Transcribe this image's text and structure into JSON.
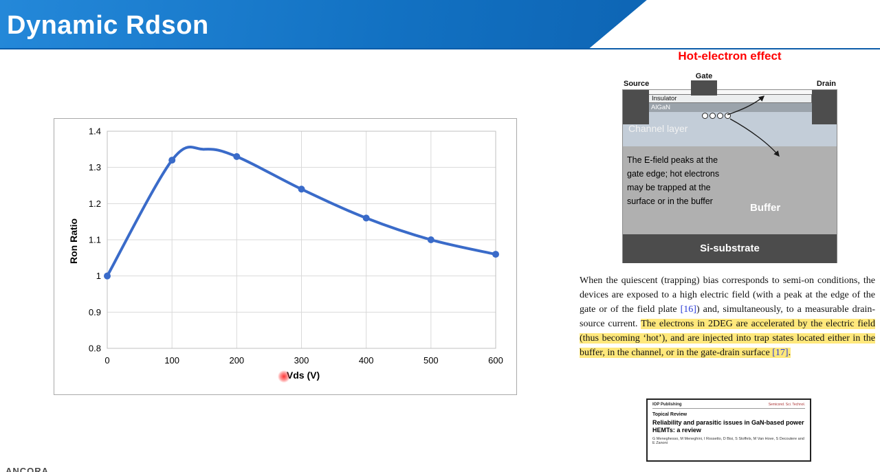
{
  "slide": {
    "title": "Dynamic Rdson",
    "footer_logo": "ANCORA"
  },
  "chart_data": {
    "type": "line",
    "title": "",
    "xlabel": "Vds (V)",
    "ylabel": "Ron Ratio",
    "xlim": [
      0,
      600
    ],
    "ylim": [
      0.8,
      1.4
    ],
    "x_ticks": [
      0,
      100,
      200,
      300,
      400,
      500,
      600
    ],
    "y_ticks": [
      0.8,
      0.9,
      1,
      1.1,
      1.2,
      1.3,
      1.4
    ],
    "grid": true,
    "legend": "none",
    "series": [
      {
        "name": "Ron Ratio",
        "color": "#3a6bc9",
        "x": [
          0,
          100,
          150,
          200,
          300,
          400,
          500,
          600
        ],
        "y": [
          1.0,
          1.32,
          1.35,
          1.33,
          1.24,
          1.16,
          1.1,
          1.06
        ],
        "marker_x": [
          0,
          100,
          200,
          300,
          400,
          500,
          600
        ]
      }
    ]
  },
  "diagram": {
    "title": "Hot-electron effect",
    "source_label": "Source",
    "gate_label": "Gate",
    "drain_label": "Drain",
    "insulator_label": "Insulator",
    "algan_label": "AlGaN",
    "channel_label": "Channel layer",
    "buffer_label": "Buffer",
    "substrate_label": "Si-substrate",
    "caption": "The E-field peaks at the gate edge; hot electrons may be trapped at the surface or in the buffer"
  },
  "paragraph": {
    "plain_1": "When the quiescent (trapping) bias corresponds to semi-on conditions, the devices are exposed to a high electric field (with a peak at the edge of the gate or of the field plate ",
    "ref_16": "[16]",
    "plain_2": ") and, simultaneously, to a measurable drain-source current. ",
    "highlight_1": "The electrons in 2DEG are accelerated by the electric field (thus becoming ‘hot’), and are injected into trap states located either in the buffer, in the channel, or in the gate-drain surface ",
    "ref_17": "[17]",
    "highlight_2": "."
  },
  "paper": {
    "publisher": "IOP Publishing",
    "journal": "Semicond. Sci. Technol.",
    "review_type": "Topical Review",
    "title": "Reliability and parasitic issues in GaN-based power HEMTs: a review",
    "authors": "G Meneghesso, M Meneghini, I Rossetto, D Bisi, S Stoffels, M Van Hove, S Decoutere and E Zanoni"
  }
}
